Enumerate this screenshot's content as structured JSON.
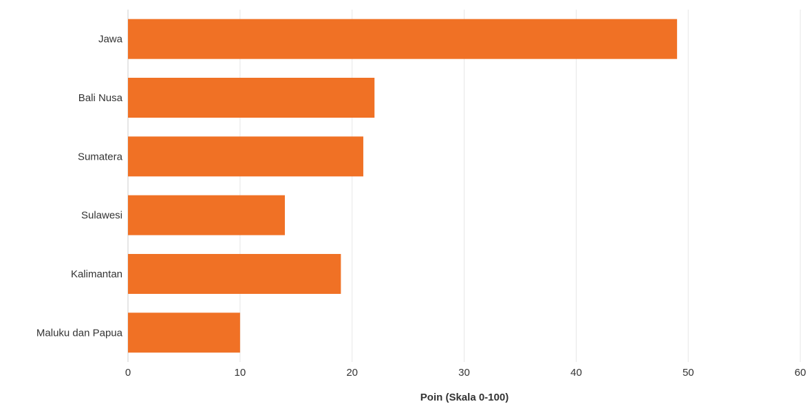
{
  "chart_data": {
    "type": "bar",
    "orientation": "horizontal",
    "categories": [
      "Jawa",
      "Bali Nusa",
      "Sumatera",
      "Sulawesi",
      "Kalimantan",
      "Maluku dan Papua"
    ],
    "values": [
      49,
      22,
      21,
      14,
      19,
      10
    ],
    "xlabel": "Poin (Skala 0-100)",
    "ylabel": "",
    "xlim": [
      0,
      60
    ],
    "xticks": [
      0,
      10,
      20,
      30,
      40,
      50,
      60
    ],
    "grid": true,
    "bar_color": "#f07125"
  }
}
